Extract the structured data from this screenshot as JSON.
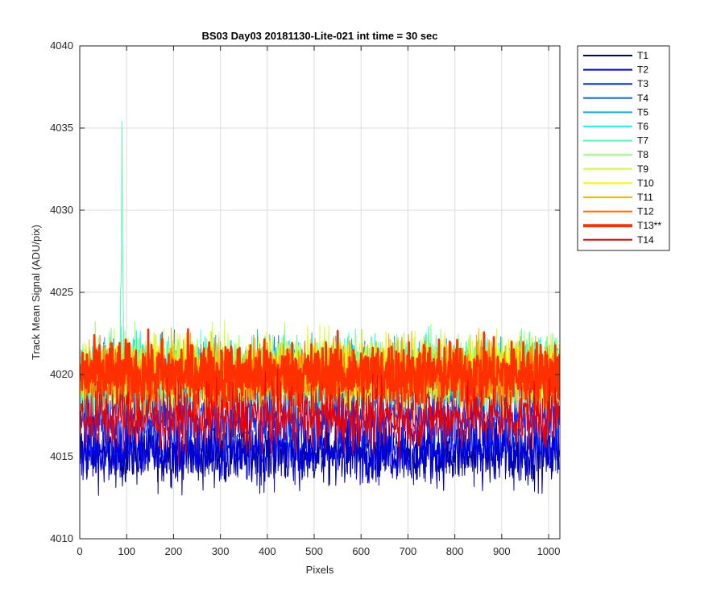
{
  "chart_data": {
    "type": "line",
    "title": "BS03 Day03 20181130-Lite-021 int time = 30 sec",
    "xlabel": "Pixels",
    "ylabel": "Track Mean Signal (ADU/pix)",
    "xlim": [
      0,
      1024
    ],
    "ylim": [
      4010,
      4040
    ],
    "xticks": [
      0,
      100,
      200,
      300,
      400,
      500,
      600,
      700,
      800,
      900,
      1000
    ],
    "yticks": [
      4010,
      4015,
      4020,
      4025,
      4030,
      4035,
      4040
    ],
    "grid": true,
    "legend_position": "outside-top-right",
    "series": [
      {
        "name": "T1",
        "color": "#00008f",
        "mean": 4015.2,
        "amp": 1.4,
        "emphasized": false
      },
      {
        "name": "T2",
        "color": "#0000df",
        "mean": 4015.4,
        "amp": 1.4,
        "emphasized": false
      },
      {
        "name": "T3",
        "color": "#0030ff",
        "mean": 4017.3,
        "amp": 1.5,
        "emphasized": false
      },
      {
        "name": "T4",
        "color": "#0070ff",
        "mean": 4019.6,
        "amp": 1.5,
        "emphasized": false
      },
      {
        "name": "T5",
        "color": "#00b0ff",
        "mean": 4019.9,
        "amp": 1.5,
        "emphasized": false
      },
      {
        "name": "T6",
        "color": "#10ffef",
        "mean": 4020.1,
        "amp": 1.5,
        "emphasized": false
      },
      {
        "name": "T7",
        "color": "#50ffaf",
        "mean": 4020.2,
        "amp": 1.5,
        "emphasized": false,
        "spike": {
          "x": 90,
          "y": 4035.4
        }
      },
      {
        "name": "T8",
        "color": "#8fff70",
        "mean": 4020.3,
        "amp": 1.5,
        "emphasized": false
      },
      {
        "name": "T9",
        "color": "#cfff30",
        "mean": 4020.2,
        "amp": 1.5,
        "emphasized": false
      },
      {
        "name": "T10",
        "color": "#ffef00",
        "mean": 4020.1,
        "amp": 1.5,
        "emphasized": false
      },
      {
        "name": "T11",
        "color": "#ffb000",
        "mean": 4020.0,
        "amp": 1.5,
        "emphasized": false
      },
      {
        "name": "T12",
        "color": "#ff7000",
        "mean": 4019.9,
        "amp": 1.5,
        "emphasized": false
      },
      {
        "name": "T13**",
        "color": "#ff3000",
        "mean": 4020.0,
        "amp": 1.4,
        "emphasized": true
      },
      {
        "name": "T14",
        "color": "#ef0000",
        "mean": 4017.4,
        "amp": 1.4,
        "emphasized": false
      }
    ]
  }
}
